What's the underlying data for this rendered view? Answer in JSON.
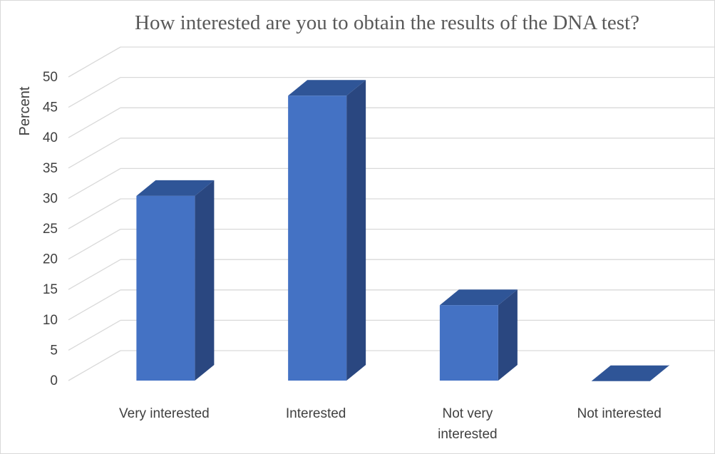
{
  "chart_data": {
    "type": "bar",
    "style": "3d-column",
    "title": "How interested are you to obtain the results of the DNA test?",
    "ylabel": "Percent",
    "xlabel": "",
    "categories": [
      [
        "Very interested"
      ],
      [
        "Interested"
      ],
      [
        "Not very",
        "interested"
      ],
      [
        "Not interested"
      ]
    ],
    "values": [
      33,
      49.5,
      15,
      2.5
    ],
    "ylim": [
      0,
      50
    ],
    "yticks": [
      0,
      5,
      10,
      15,
      20,
      25,
      30,
      35,
      40,
      45,
      50
    ],
    "grid": true,
    "legend": "none",
    "colors": {
      "front": "#4472C4",
      "side": "#2A4780",
      "top": "#2F5597",
      "grid": "#d9d9d9",
      "text": "#404040",
      "title": "#595959"
    }
  }
}
